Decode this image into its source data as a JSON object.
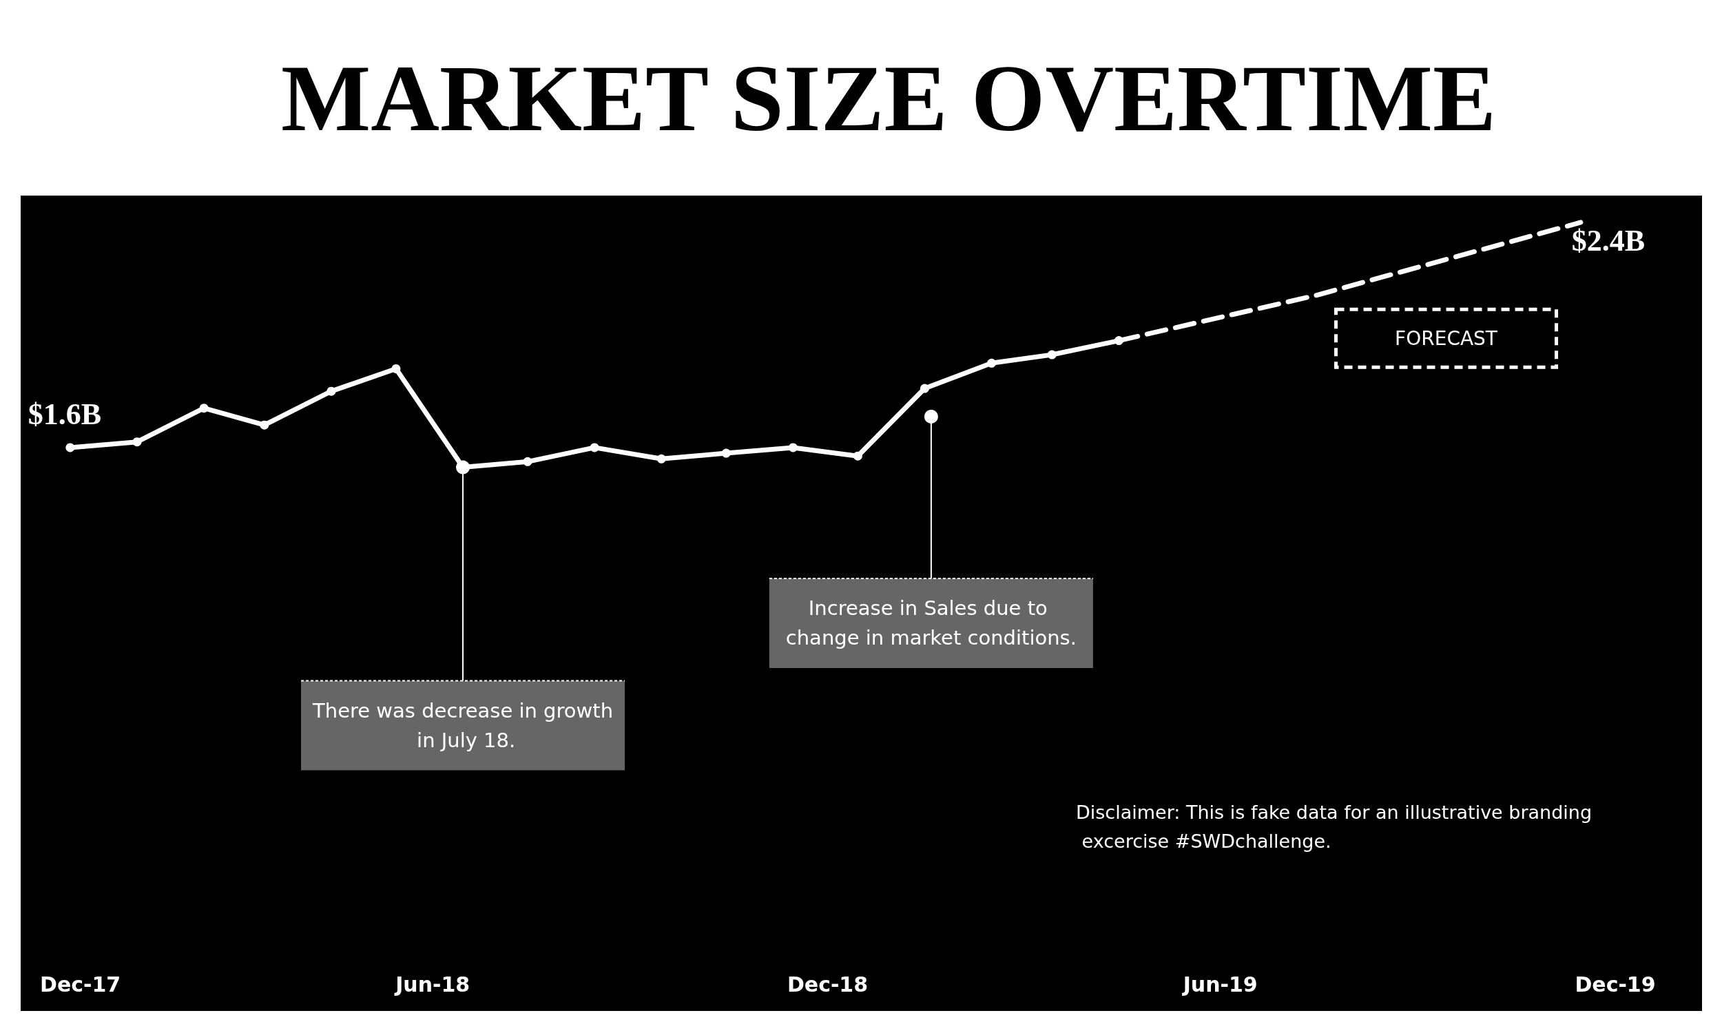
{
  "chart_data": {
    "type": "line",
    "title": "MARKET SIZE OVERTIME",
    "series": [
      {
        "color": "#ffffff",
        "marker": "circle",
        "line_style": "solid",
        "x": [
          "2017-12-15",
          "2018-01-15",
          "2018-02-15",
          "2018-03-15",
          "2018-04-15",
          "2018-05-15",
          "2018-06-15",
          "2018-07-15",
          "2018-08-15",
          "2018-09-15",
          "2018-10-15",
          "2018-11-15",
          "2018-12-15",
          "2019-01-15",
          "2019-02-15",
          "2019-03-15",
          "2019-04-15"
        ],
        "values": [
          1.6,
          1.62,
          1.74,
          1.68,
          1.8,
          1.88,
          1.53,
          1.55,
          1.6,
          1.56,
          1.58,
          1.6,
          1.57,
          1.81,
          1.9,
          1.93,
          1.98
        ],
        "value_labels": [
          "$1.6B",
          null,
          null,
          null,
          null,
          null,
          null,
          null,
          null,
          null,
          null,
          null,
          null,
          null,
          null,
          null,
          null
        ]
      },
      {
        "name": "FORECAST",
        "color": "#ffffff",
        "marker": "none",
        "line_style": "dashed",
        "x": [
          "2019-04-15",
          "2019-07-15",
          "2019-11-15"
        ],
        "values": [
          1.98,
          2.14,
          2.4
        ],
        "value_labels": [
          null,
          null,
          "$2.4B"
        ]
      }
    ],
    "xlim": [
      "2017-12-01",
      "2019-12-01"
    ],
    "xticks": [
      {
        "value": "2017-12-01",
        "label": "Dec-17"
      },
      {
        "value": "2018-06-01",
        "label": "Jun-18"
      },
      {
        "value": "2018-12-01",
        "label": "Dec-18"
      },
      {
        "value": "2019-06-01",
        "label": "Jun-19"
      },
      {
        "value": "2019-12-01",
        "label": "Dec-19"
      }
    ],
    "tick_labels": "x",
    "grid": false,
    "annotations": [
      {
        "text": "There was decrease in growth in July 18.",
        "x": "2018-06-15",
        "y": 1.53
      },
      {
        "text": "Increase in Sales due to change in market conditions.",
        "x": "2019-01-18",
        "y": 1.71
      },
      "Disclaimer: This is fake data for an illustrative branding excercise #SWDchallenge."
    ]
  }
}
